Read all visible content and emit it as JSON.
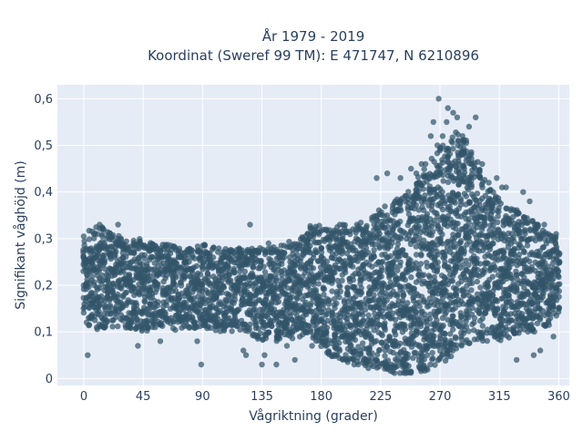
{
  "chart_data": {
    "type": "scatter",
    "title_lines": [
      "År 1979 - 2019",
      "Koordinat (Sweref 99 TM): E 471747, N 6210896"
    ],
    "xlabel": "Vågriktning (grader)",
    "ylabel": "Signifikant våghöjd (m)",
    "xlim": [
      -20,
      368
    ],
    "ylim": [
      -0.015,
      0.63
    ],
    "x_ticks": [
      0,
      45,
      90,
      135,
      180,
      225,
      270,
      315,
      360
    ],
    "x_tick_labels": [
      "0",
      "45",
      "90",
      "135",
      "180",
      "225",
      "270",
      "315",
      "360"
    ],
    "y_ticks": [
      0,
      0.1,
      0.2,
      0.3,
      0.4,
      0.5,
      0.6
    ],
    "y_tick_labels": [
      "0",
      "0,1",
      "0,2",
      "0,3",
      "0,4",
      "0,5",
      "0,6"
    ],
    "grid": true,
    "marker_color": "#325569",
    "plot_bg": "#e5ecf6",
    "upper_envelope": [
      [
        0,
        0.31
      ],
      [
        10,
        0.33
      ],
      [
        20,
        0.32
      ],
      [
        30,
        0.3
      ],
      [
        45,
        0.3
      ],
      [
        60,
        0.29
      ],
      [
        75,
        0.28
      ],
      [
        90,
        0.29
      ],
      [
        105,
        0.28
      ],
      [
        120,
        0.28
      ],
      [
        135,
        0.28
      ],
      [
        150,
        0.29
      ],
      [
        165,
        0.3
      ],
      [
        175,
        0.34
      ],
      [
        185,
        0.32
      ],
      [
        195,
        0.33
      ],
      [
        205,
        0.33
      ],
      [
        215,
        0.34
      ],
      [
        225,
        0.37
      ],
      [
        235,
        0.38
      ],
      [
        245,
        0.4
      ],
      [
        255,
        0.44
      ],
      [
        262,
        0.47
      ],
      [
        270,
        0.5
      ],
      [
        278,
        0.53
      ],
      [
        285,
        0.53
      ],
      [
        292,
        0.51
      ],
      [
        300,
        0.45
      ],
      [
        310,
        0.4
      ],
      [
        320,
        0.37
      ],
      [
        330,
        0.36
      ],
      [
        340,
        0.34
      ],
      [
        350,
        0.32
      ],
      [
        360,
        0.3
      ]
    ],
    "lower_envelope": [
      [
        0,
        0.12
      ],
      [
        10,
        0.1
      ],
      [
        20,
        0.11
      ],
      [
        30,
        0.11
      ],
      [
        45,
        0.1
      ],
      [
        60,
        0.11
      ],
      [
        75,
        0.1
      ],
      [
        90,
        0.11
      ],
      [
        105,
        0.1
      ],
      [
        120,
        0.1
      ],
      [
        135,
        0.08
      ],
      [
        150,
        0.08
      ],
      [
        165,
        0.09
      ],
      [
        175,
        0.08
      ],
      [
        185,
        0.05
      ],
      [
        195,
        0.04
      ],
      [
        205,
        0.03
      ],
      [
        215,
        0.02
      ],
      [
        225,
        0.02
      ],
      [
        235,
        0.01
      ],
      [
        245,
        0.01
      ],
      [
        255,
        0.01
      ],
      [
        265,
        0.02
      ],
      [
        275,
        0.04
      ],
      [
        285,
        0.06
      ],
      [
        295,
        0.08
      ],
      [
        305,
        0.08
      ],
      [
        315,
        0.08
      ],
      [
        325,
        0.09
      ],
      [
        335,
        0.1
      ],
      [
        345,
        0.1
      ],
      [
        355,
        0.12
      ],
      [
        360,
        0.14
      ]
    ],
    "outliers": [
      [
        3,
        0.05
      ],
      [
        5,
        0.27
      ],
      [
        12,
        0.33
      ],
      [
        15,
        0.32
      ],
      [
        26,
        0.33
      ],
      [
        38,
        0.27
      ],
      [
        41,
        0.07
      ],
      [
        42,
        0.26
      ],
      [
        46,
        0.11
      ],
      [
        49,
        0.11
      ],
      [
        52,
        0.26
      ],
      [
        58,
        0.08
      ],
      [
        63,
        0.27
      ],
      [
        69,
        0.25
      ],
      [
        72,
        0.26
      ],
      [
        74,
        0.26
      ],
      [
        77,
        0.27
      ],
      [
        82,
        0.26
      ],
      [
        86,
        0.08
      ],
      [
        89,
        0.03
      ],
      [
        91,
        0.25
      ],
      [
        93,
        0.27
      ],
      [
        108,
        0.26
      ],
      [
        121,
        0.06
      ],
      [
        123,
        0.05
      ],
      [
        126,
        0.33
      ],
      [
        128,
        0.26
      ],
      [
        135,
        0.03
      ],
      [
        137,
        0.05
      ],
      [
        140,
        0.29
      ],
      [
        143,
        0.27
      ],
      [
        146,
        0.03
      ],
      [
        152,
        0.27
      ],
      [
        154,
        0.07
      ],
      [
        156,
        0.26
      ],
      [
        160,
        0.04
      ],
      [
        165,
        0.11
      ],
      [
        168,
        0.27
      ],
      [
        170,
        0.31
      ],
      [
        173,
        0.07
      ],
      [
        177,
        0.1
      ],
      [
        180,
        0.28
      ],
      [
        187,
        0.28
      ],
      [
        189,
        0.31
      ],
      [
        190,
        0.08
      ],
      [
        194,
        0.33
      ],
      [
        196,
        0.09
      ],
      [
        199,
        0.04
      ],
      [
        203,
        0.28
      ],
      [
        205,
        0.03
      ],
      [
        207,
        0.33
      ],
      [
        211,
        0.27
      ],
      [
        214,
        0.28
      ],
      [
        222,
        0.43
      ],
      [
        230,
        0.44
      ],
      [
        233,
        0.03
      ],
      [
        236,
        0.38
      ],
      [
        240,
        0.43
      ],
      [
        248,
        0.45
      ],
      [
        252,
        0.44
      ],
      [
        256,
        0.46
      ],
      [
        259,
        0.46
      ],
      [
        263,
        0.52
      ],
      [
        265,
        0.55
      ],
      [
        268,
        0.5
      ],
      [
        269,
        0.6
      ],
      [
        272,
        0.52
      ],
      [
        275,
        0.55
      ],
      [
        276,
        0.58
      ],
      [
        280,
        0.57
      ],
      [
        283,
        0.56
      ],
      [
        287,
        0.52
      ],
      [
        292,
        0.54
      ],
      [
        297,
        0.56
      ],
      [
        302,
        0.46
      ],
      [
        307,
        0.42
      ],
      [
        313,
        0.43
      ],
      [
        317,
        0.41
      ],
      [
        320,
        0.41
      ],
      [
        323,
        0.33
      ],
      [
        328,
        0.04
      ],
      [
        333,
        0.4
      ],
      [
        338,
        0.38
      ],
      [
        341,
        0.05
      ],
      [
        343,
        0.33
      ],
      [
        346,
        0.06
      ],
      [
        349,
        0.33
      ],
      [
        352,
        0.31
      ],
      [
        356,
        0.09
      ],
      [
        358,
        0.31
      ]
    ]
  }
}
